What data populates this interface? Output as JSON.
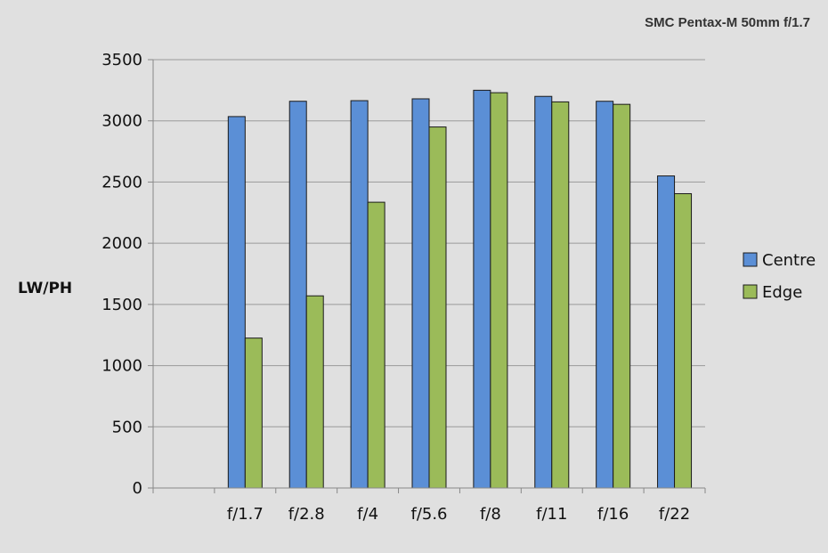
{
  "chart_data": {
    "type": "bar",
    "title": "SMC Pentax-M 50mm f/1.7",
    "xlabel": "",
    "ylabel": "LW/PH",
    "ylim": [
      0,
      3500
    ],
    "yticks": [
      0,
      500,
      1000,
      1500,
      2000,
      2500,
      3000,
      3500
    ],
    "categories": [
      "",
      "f/1.7",
      "f/2.8",
      "f/4",
      "f/5.6",
      "f/8",
      "f/11",
      "f/16",
      "f/22"
    ],
    "series": [
      {
        "name": "Centre",
        "color": "#5b8fd6",
        "values": [
          null,
          3035,
          3160,
          3165,
          3180,
          3250,
          3200,
          3160,
          2550
        ]
      },
      {
        "name": "Edge",
        "color": "#9bbb59",
        "values": [
          null,
          1225,
          1570,
          2335,
          2950,
          3230,
          3155,
          3135,
          2405
        ]
      }
    ],
    "grid": true,
    "legend": "right"
  }
}
